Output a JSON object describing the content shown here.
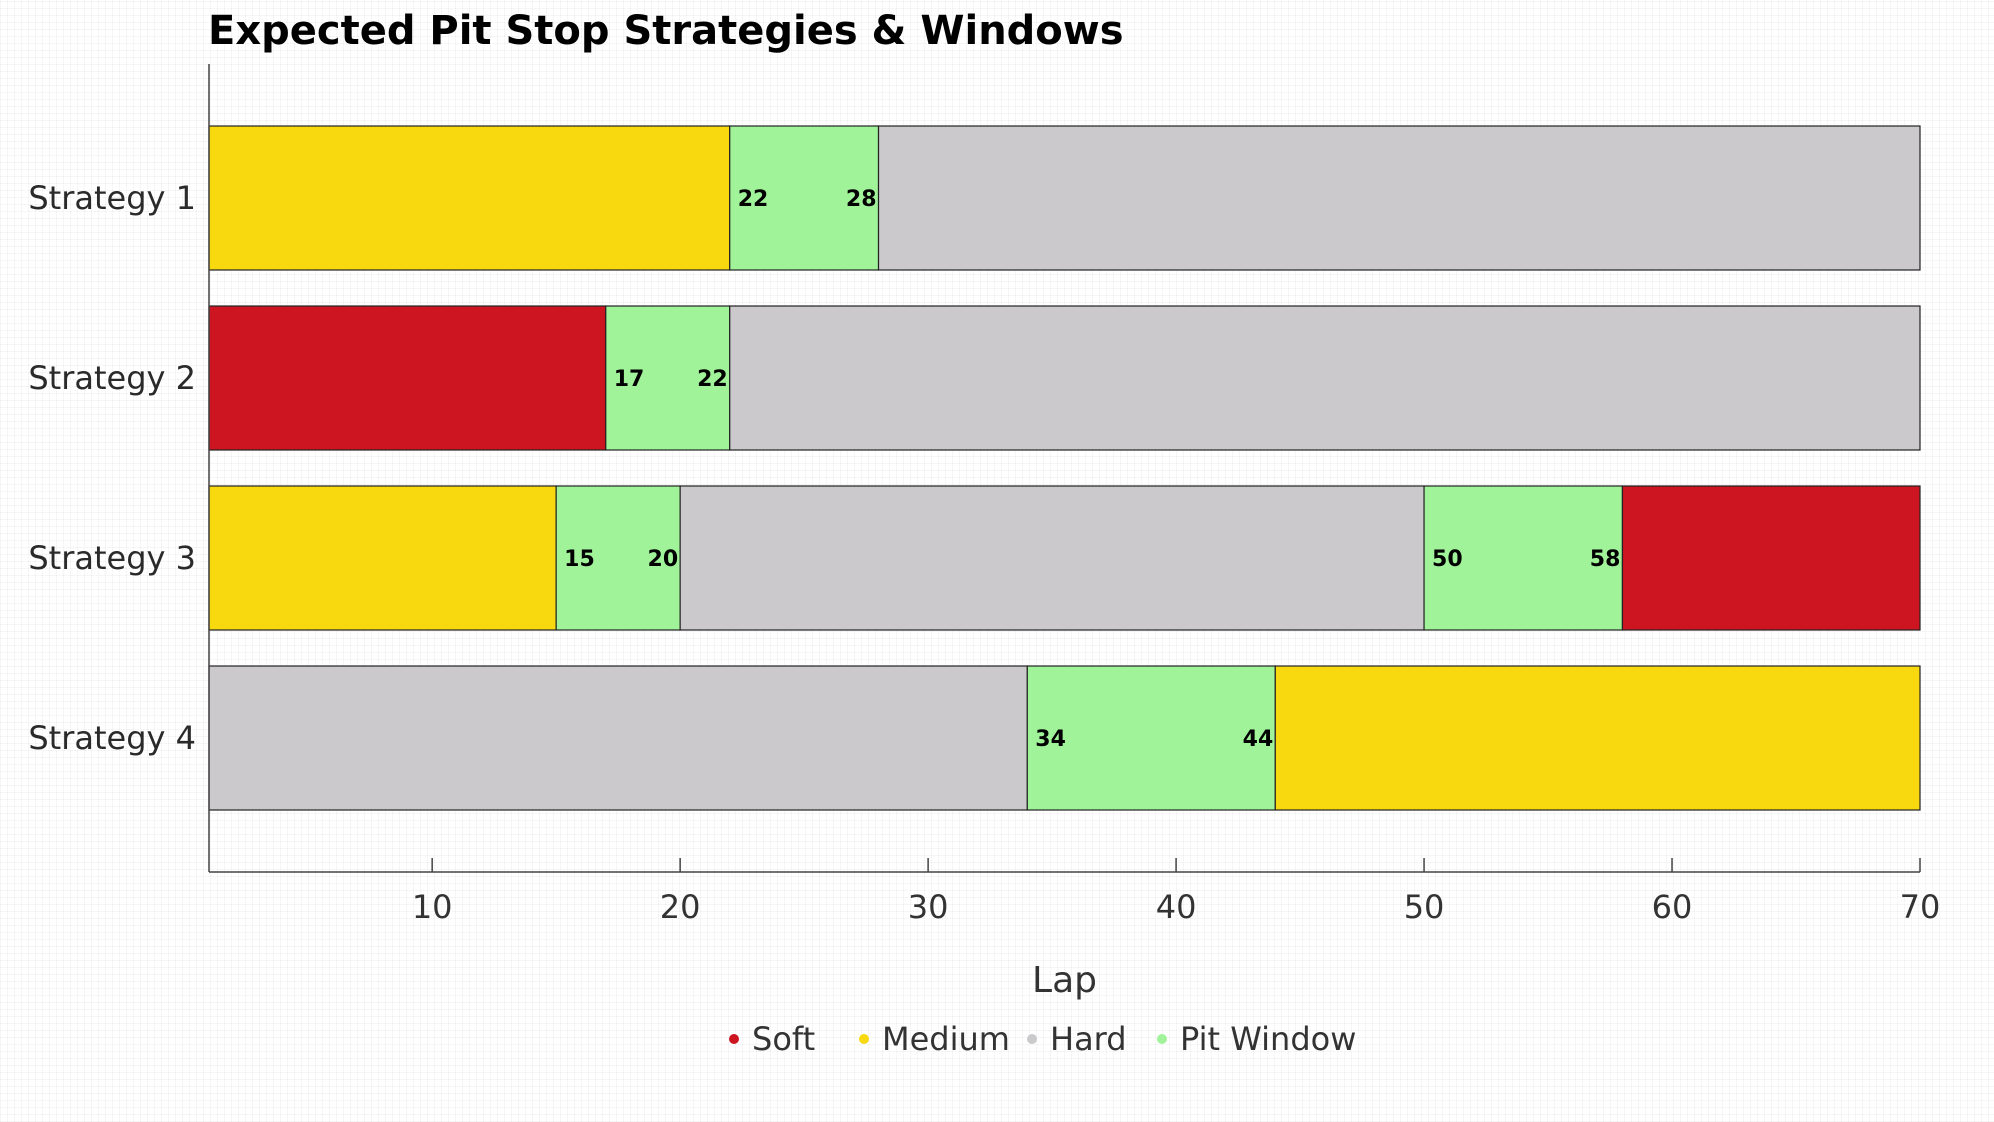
{
  "chart_data": {
    "type": "bar",
    "orientation": "horizontal-stacked",
    "title": "Expected Pit Stop Strategies & Windows",
    "xlabel": "Lap",
    "ylabel": "",
    "xlim": [
      1,
      70
    ],
    "xticks": [
      10,
      20,
      30,
      40,
      50,
      60,
      70
    ],
    "grid": false,
    "legend_position": "bottom",
    "colors": {
      "Soft": "#cc1521",
      "Medium": "#f8d80f",
      "Hard": "#cbc9cc",
      "Pit Window": "#a1f39a"
    },
    "legend": [
      "Soft",
      "Medium",
      "Hard",
      "Pit Window"
    ],
    "categories": [
      "Strategy 1",
      "Strategy 2",
      "Strategy 3",
      "Strategy 4"
    ],
    "strategies": [
      {
        "name": "Strategy 1",
        "segments": [
          {
            "compound": "Medium",
            "start": 1,
            "end": 22
          },
          {
            "compound": "Pit Window",
            "start": 22,
            "end": 28
          },
          {
            "compound": "Hard",
            "start": 28,
            "end": 70
          }
        ],
        "windows": [
          {
            "start": 22,
            "end": 28
          }
        ]
      },
      {
        "name": "Strategy 2",
        "segments": [
          {
            "compound": "Soft",
            "start": 1,
            "end": 17
          },
          {
            "compound": "Pit Window",
            "start": 17,
            "end": 22
          },
          {
            "compound": "Hard",
            "start": 22,
            "end": 70
          }
        ],
        "windows": [
          {
            "start": 17,
            "end": 22
          }
        ]
      },
      {
        "name": "Strategy 3",
        "segments": [
          {
            "compound": "Medium",
            "start": 1,
            "end": 15
          },
          {
            "compound": "Pit Window",
            "start": 15,
            "end": 20
          },
          {
            "compound": "Hard",
            "start": 20,
            "end": 50
          },
          {
            "compound": "Pit Window",
            "start": 50,
            "end": 58
          },
          {
            "compound": "Soft",
            "start": 58,
            "end": 70
          }
        ],
        "windows": [
          {
            "start": 15,
            "end": 20
          },
          {
            "start": 50,
            "end": 58
          }
        ]
      },
      {
        "name": "Strategy 4",
        "segments": [
          {
            "compound": "Hard",
            "start": 1,
            "end": 34
          },
          {
            "compound": "Pit Window",
            "start": 34,
            "end": 44
          },
          {
            "compound": "Medium",
            "start": 44,
            "end": 70
          }
        ],
        "windows": [
          {
            "start": 34,
            "end": 44
          }
        ]
      }
    ]
  }
}
